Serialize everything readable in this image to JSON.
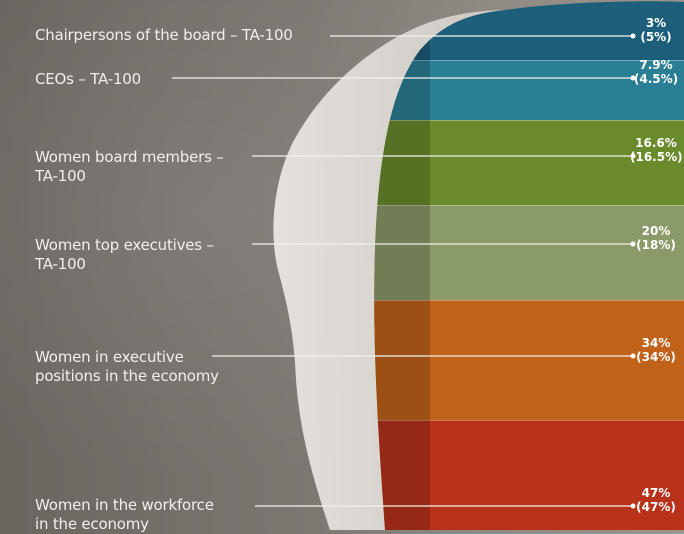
{
  "chart_data": {
    "type": "bar",
    "categories": [
      "Chairpersons of the board – TA-100",
      "CEOs – TA-100",
      "Women board members – TA-100",
      "Women top executives – TA-100",
      "Women in executive positions in the economy",
      "Women in the workforce in the economy"
    ],
    "series": [
      {
        "values": [
          3,
          7.9,
          16.6,
          20,
          34,
          47
        ]
      },
      {
        "values": [
          5,
          4.5,
          16.5,
          18,
          34,
          47
        ]
      }
    ],
    "display_values": [
      "3%",
      "7.9%",
      "16.6%",
      "20%",
      "34%",
      "47%"
    ],
    "display_values_prev": [
      "(5%)",
      "(4.5%)",
      "(16.5%)",
      "(18%)",
      "(34%)",
      "(47%)"
    ],
    "labels_lines": [
      [
        "Chairpersons of the board – TA-100"
      ],
      [
        "CEOs – TA-100"
      ],
      [
        "Women board members –",
        "TA-100"
      ],
      [
        "Women top executives –",
        "TA-100"
      ],
      [
        "Women in executive",
        "positions in the economy"
      ],
      [
        "Women in the workforce",
        "in the economy"
      ]
    ],
    "band_colors": [
      "#1d5f7a",
      "#2a7f95",
      "#6a8a2c",
      "#8a9a68",
      "#c0621a",
      "#b8321a"
    ]
  }
}
